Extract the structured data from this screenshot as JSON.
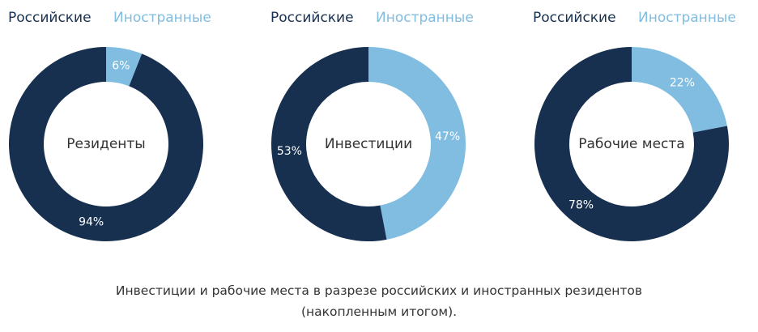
{
  "colors": {
    "russian": "#17304f",
    "foreign": "#80bde0",
    "center_text": "#333333",
    "pct_text": "#ffffff"
  },
  "legend": {
    "russian": "Российские",
    "foreign": "Иностранные"
  },
  "chart_data": [
    {
      "type": "pie",
      "title": "Резиденты",
      "series": [
        {
          "name": "Иностранные",
          "value": 6,
          "label": "6%"
        },
        {
          "name": "Российские",
          "value": 94,
          "label": "94%"
        }
      ]
    },
    {
      "type": "pie",
      "title": "Инвестиции",
      "series": [
        {
          "name": "Иностранные",
          "value": 47,
          "label": "47%"
        },
        {
          "name": "Российские",
          "value": 53,
          "label": "53%"
        }
      ]
    },
    {
      "type": "pie",
      "title": "Рабочие места",
      "series": [
        {
          "name": "Иностранные",
          "value": 22,
          "label": "22%"
        },
        {
          "name": "Российские",
          "value": 78,
          "label": "78%"
        }
      ]
    }
  ],
  "caption": {
    "line1": "Инвестиции и рабочие места в разрезе российских и иностранных резидентов",
    "line2": "(накопленным итогом)."
  }
}
